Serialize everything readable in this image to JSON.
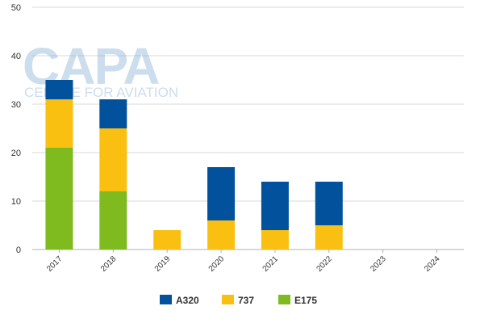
{
  "watermark": {
    "logo": "CAPA",
    "tagline": "CENTRE FOR AVIATION"
  },
  "chart_data": {
    "type": "bar",
    "stacked": true,
    "categories": [
      "2017",
      "2018",
      "2019",
      "2020",
      "2021",
      "2022",
      "2023",
      "2024"
    ],
    "series": [
      {
        "name": "E175",
        "color": "#7fba1e",
        "values": [
          21,
          12,
          0,
          0,
          0,
          0,
          0,
          0
        ]
      },
      {
        "name": "737",
        "color": "#f9c011",
        "values": [
          10,
          13,
          4,
          6,
          4,
          5,
          0,
          0
        ]
      },
      {
        "name": "A320",
        "color": "#01519c",
        "values": [
          4,
          6,
          0,
          11,
          10,
          9,
          0,
          0
        ]
      }
    ],
    "legend_order": [
      "A320",
      "737",
      "E175"
    ],
    "legend_position": "bottom",
    "ylim": [
      0,
      50
    ],
    "yticks": [
      "0",
      "10",
      "20",
      "30",
      "40",
      "50"
    ],
    "grid": true,
    "title": "",
    "xlabel": "",
    "ylabel": ""
  }
}
